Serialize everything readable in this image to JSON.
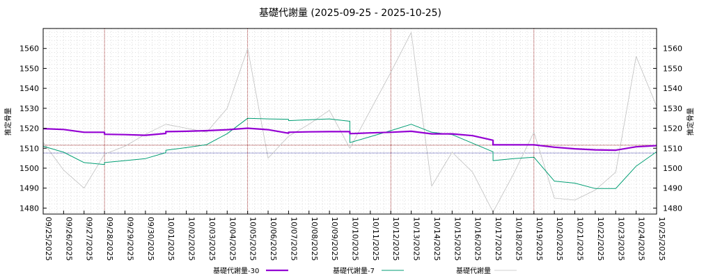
{
  "chart_data": {
    "type": "line",
    "title": "基礎代謝量 (2025-09-25 - 2025-10-25)",
    "ylabel_left": "推定骨量",
    "ylabel_right": "推定骨量",
    "x": [
      "09/25/2025",
      "09/26/2025",
      "09/27/2025",
      "09/28/2025",
      "09/29/2025",
      "09/30/2025",
      "10/01/2025",
      "10/02/2025",
      "10/03/2025",
      "10/04/2025",
      "10/05/2025",
      "10/06/2025",
      "10/07/2025",
      "10/08/2025",
      "10/09/2025",
      "10/10/2025",
      "10/11/2025",
      "10/12/2025",
      "10/13/2025",
      "10/14/2025",
      "10/15/2025",
      "10/16/2025",
      "10/17/2025",
      "10/18/2025",
      "10/19/2025",
      "10/20/2025",
      "10/21/2025",
      "10/22/2025",
      "10/23/2025",
      "10/24/2025",
      "10/25/2025"
    ],
    "ylim": [
      1477,
      1570
    ],
    "yticks": [
      1480,
      1490,
      1500,
      1510,
      1520,
      1530,
      1540,
      1550,
      1560
    ],
    "grid": true,
    "legend_position": "bottom",
    "series": [
      {
        "name": "基礎代謝量-30",
        "color": "#9400d3",
        "points": [
          [
            "09/25/2025",
            1519.8
          ],
          [
            "09/26/2025",
            1519.4
          ],
          [
            "09/27/2025",
            1518.0
          ],
          [
            "09/28/2025",
            1518.0
          ],
          [
            "09/28/2025",
            1517.0
          ],
          [
            "09/29/2025",
            1516.8
          ],
          [
            "09/30/2025",
            1516.5
          ],
          [
            "10/01/2025",
            1517.4
          ],
          [
            "10/01/2025",
            1518.3
          ],
          [
            "10/02/2025",
            1518.5
          ],
          [
            "10/03/2025",
            1518.8
          ],
          [
            "10/04/2025",
            1519.3
          ],
          [
            "10/05/2025",
            1520.0
          ],
          [
            "10/06/2025",
            1519.3
          ],
          [
            "10/07/2025",
            1517.5
          ],
          [
            "10/07/2025",
            1518.0
          ],
          [
            "10/08/2025",
            1518.2
          ],
          [
            "10/09/2025",
            1518.3
          ],
          [
            "10/10/2025",
            1518.3
          ],
          [
            "10/10/2025",
            1517.3
          ],
          [
            "10/11/2025",
            1517.7
          ],
          [
            "10/12/2025",
            1518.0
          ],
          [
            "10/13/2025",
            1518.5
          ],
          [
            "10/14/2025",
            1517.2
          ],
          [
            "10/15/2025",
            1517.2
          ],
          [
            "10/16/2025",
            1516.3
          ],
          [
            "10/17/2025",
            1514.0
          ],
          [
            "10/17/2025",
            1511.7
          ],
          [
            "10/18/2025",
            1511.7
          ],
          [
            "10/19/2025",
            1511.7
          ],
          [
            "10/20/2025",
            1510.5
          ],
          [
            "10/21/2025",
            1509.7
          ],
          [
            "10/22/2025",
            1509.2
          ],
          [
            "10/23/2025",
            1509.0
          ],
          [
            "10/24/2025",
            1510.7
          ],
          [
            "10/25/2025",
            1511.3
          ]
        ]
      },
      {
        "name": "基礎代謝量-7",
        "color": "#009e73",
        "points": [
          [
            "09/25/2025",
            1511.0
          ],
          [
            "09/26/2025",
            1508.0
          ],
          [
            "09/27/2025",
            1502.8
          ],
          [
            "09/28/2025",
            1501.8
          ],
          [
            "09/28/2025",
            1502.8
          ],
          [
            "09/29/2025",
            1503.8
          ],
          [
            "09/30/2025",
            1504.8
          ],
          [
            "10/01/2025",
            1507.8
          ],
          [
            "10/01/2025",
            1509.0
          ],
          [
            "10/02/2025",
            1510.3
          ],
          [
            "10/03/2025",
            1511.8
          ],
          [
            "10/04/2025",
            1517.3
          ],
          [
            "10/05/2025",
            1525.0
          ],
          [
            "10/06/2025",
            1524.7
          ],
          [
            "10/07/2025",
            1524.5
          ],
          [
            "10/07/2025",
            1523.8
          ],
          [
            "10/08/2025",
            1524.3
          ],
          [
            "10/09/2025",
            1524.7
          ],
          [
            "10/10/2025",
            1523.5
          ],
          [
            "10/10/2025",
            1512.8
          ],
          [
            "10/11/2025",
            1515.8
          ],
          [
            "10/12/2025",
            1518.8
          ],
          [
            "10/13/2025",
            1522.0
          ],
          [
            "10/14/2025",
            1518.0
          ],
          [
            "10/15/2025",
            1516.8
          ],
          [
            "10/16/2025",
            1512.5
          ],
          [
            "10/17/2025",
            1508.2
          ],
          [
            "10/17/2025",
            1503.8
          ],
          [
            "10/18/2025",
            1504.8
          ],
          [
            "10/19/2025",
            1505.5
          ],
          [
            "10/20/2025",
            1493.5
          ],
          [
            "10/21/2025",
            1492.5
          ],
          [
            "10/22/2025",
            1489.8
          ],
          [
            "10/23/2025",
            1489.8
          ],
          [
            "10/24/2025",
            1501.0
          ],
          [
            "10/25/2025",
            1508.2
          ]
        ]
      },
      {
        "name": "基礎代謝量",
        "color": "#c0c0c0",
        "points": [
          [
            "09/25/2025",
            1513.0
          ],
          [
            "09/26/2025",
            1499.0
          ],
          [
            "09/27/2025",
            1490.0
          ],
          [
            "09/28/2025",
            1507.0
          ],
          [
            "09/29/2025",
            1511.0
          ],
          [
            "09/30/2025",
            1517.0
          ],
          [
            "10/01/2025",
            1522.0
          ],
          [
            "10/02/2025",
            1520.0
          ],
          [
            "10/03/2025",
            1518.0
          ],
          [
            "10/04/2025",
            1530.0
          ],
          [
            "10/05/2025",
            1560.0
          ],
          [
            "10/06/2025",
            1505.0
          ],
          [
            "10/07/2025",
            1516.0
          ],
          [
            "10/08/2025",
            1522.0
          ],
          [
            "10/09/2025",
            1529.0
          ],
          [
            "10/10/2025",
            1510.0
          ],
          [
            "10/11/2025",
            1529.0
          ],
          [
            "10/12/2025",
            1548.0
          ],
          [
            "10/13/2025",
            1568.0
          ],
          [
            "10/14/2025",
            1491.0
          ],
          [
            "10/15/2025",
            1508.0
          ],
          [
            "10/16/2025",
            1498.0
          ],
          [
            "10/17/2025",
            1478.0
          ],
          [
            "10/18/2025",
            1497.0
          ],
          [
            "10/19/2025",
            1518.0
          ],
          [
            "10/20/2025",
            1485.0
          ],
          [
            "10/21/2025",
            1484.0
          ],
          [
            "10/22/2025",
            1489.0
          ],
          [
            "10/23/2025",
            1498.0
          ],
          [
            "10/24/2025",
            1556.0
          ],
          [
            "10/25/2025",
            1531.0
          ]
        ]
      }
    ],
    "reference_lines": {
      "horizontal": [
        {
          "value": 1511.5,
          "color": "#8b0000"
        },
        {
          "value": 1507.6,
          "color": "#00008b"
        }
      ],
      "vertical_dates": [
        "09/28/2025",
        "10/05/2025",
        "10/12/2025",
        "10/19/2025"
      ],
      "vertical_color": "#8b0000"
    }
  }
}
